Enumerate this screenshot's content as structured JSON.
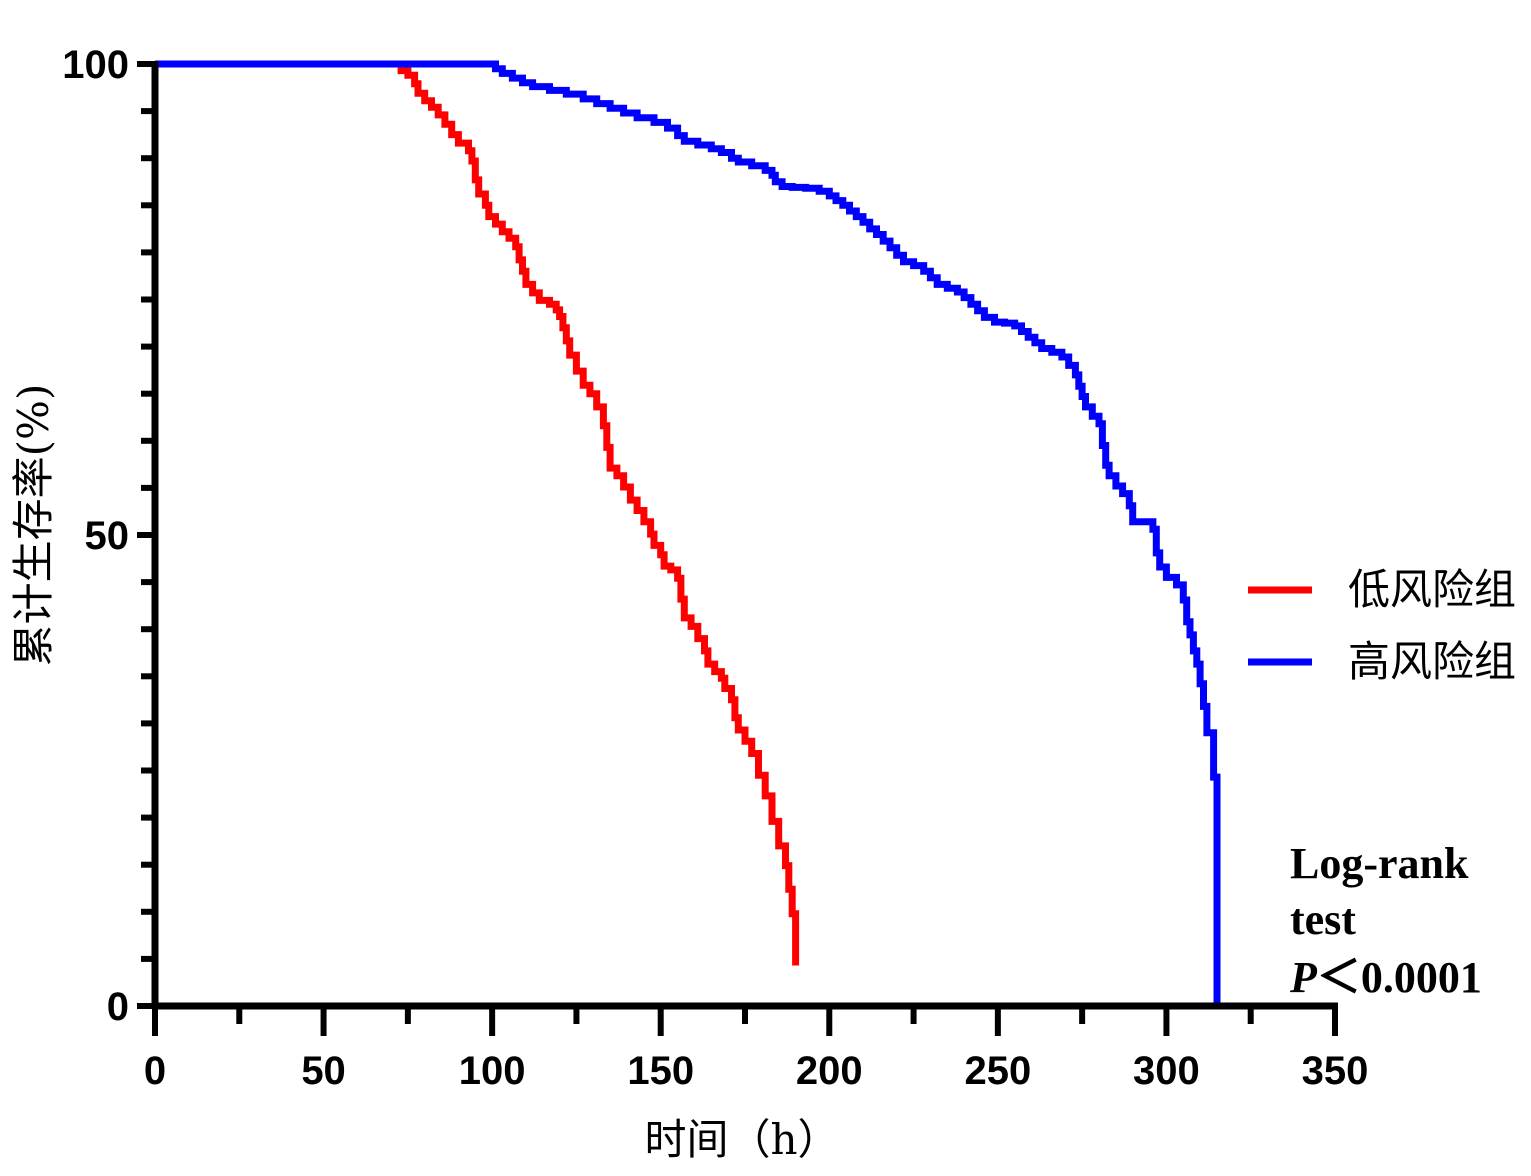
{
  "chart_data": {
    "type": "line",
    "subtype": "kaplan-meier step",
    "title": "",
    "xlabel": "时间（h）",
    "ylabel": "累计生存率(%)",
    "xlim": [
      0,
      350
    ],
    "ylim": [
      0,
      100
    ],
    "x_ticks": [
      0,
      50,
      100,
      150,
      200,
      250,
      300,
      350
    ],
    "y_ticks": [
      0,
      50,
      100
    ],
    "x_minor_step": 25,
    "y_minor_step": 5,
    "grid": false,
    "legend_position": "right",
    "series": [
      {
        "name": "低风险组",
        "color": "#ff0000",
        "points": [
          [
            0,
            100
          ],
          [
            72,
            100
          ],
          [
            73,
            99.3
          ],
          [
            75,
            98.8
          ],
          [
            77,
            97.9
          ],
          [
            78,
            96.9
          ],
          [
            80,
            96.1
          ],
          [
            82,
            95.4
          ],
          [
            84,
            94.6
          ],
          [
            86,
            93.6
          ],
          [
            88,
            92.5
          ],
          [
            90,
            91.6
          ],
          [
            93,
            90.8
          ],
          [
            94,
            89.7
          ],
          [
            95,
            87.7
          ],
          [
            96,
            86.2
          ],
          [
            98,
            85.0
          ],
          [
            99,
            83.8
          ],
          [
            101,
            83.0
          ],
          [
            103,
            82.2
          ],
          [
            105,
            81.5
          ],
          [
            107,
            80.6
          ],
          [
            108,
            79.2
          ],
          [
            109,
            78.0
          ],
          [
            110,
            76.6
          ],
          [
            112,
            75.7
          ],
          [
            114,
            74.9
          ],
          [
            117,
            74.5
          ],
          [
            119,
            73.9
          ],
          [
            120,
            73.2
          ],
          [
            121,
            72.0
          ],
          [
            122,
            70.6
          ],
          [
            123,
            69.1
          ],
          [
            125,
            67.4
          ],
          [
            127,
            65.9
          ],
          [
            129,
            65.0
          ],
          [
            131,
            63.6
          ],
          [
            133,
            61.6
          ],
          [
            134,
            59.3
          ],
          [
            135,
            57.1
          ],
          [
            137,
            56.3
          ],
          [
            139,
            55.1
          ],
          [
            141,
            53.7
          ],
          [
            143,
            52.6
          ],
          [
            145,
            51.4
          ],
          [
            147,
            50.1
          ],
          [
            148,
            48.9
          ],
          [
            150,
            47.9
          ],
          [
            151,
            46.7
          ],
          [
            153,
            46.3
          ],
          [
            155,
            45.4
          ],
          [
            156,
            43.2
          ],
          [
            157,
            41.2
          ],
          [
            159,
            40.3
          ],
          [
            161,
            39.0
          ],
          [
            163,
            37.7
          ],
          [
            164,
            36.3
          ],
          [
            166,
            35.5
          ],
          [
            168,
            34.8
          ],
          [
            169,
            33.7
          ],
          [
            171,
            32.5
          ],
          [
            172,
            30.6
          ],
          [
            173,
            29.3
          ],
          [
            175,
            28.1
          ],
          [
            177,
            26.8
          ],
          [
            179,
            24.5
          ],
          [
            181,
            22.3
          ],
          [
            183,
            19.6
          ],
          [
            185,
            17.0
          ],
          [
            187,
            14.9
          ],
          [
            188,
            12.4
          ],
          [
            189,
            9.8
          ],
          [
            190,
            7.5
          ],
          [
            190,
            4.3
          ]
        ]
      },
      {
        "name": "高风险组",
        "color": "#0000ff",
        "points": [
          [
            0,
            100
          ],
          [
            100,
            100
          ],
          [
            101,
            99.5
          ],
          [
            103,
            99.0
          ],
          [
            106,
            98.5
          ],
          [
            109,
            98.0
          ],
          [
            112,
            97.6
          ],
          [
            117,
            97.2
          ],
          [
            122,
            96.8
          ],
          [
            127,
            96.3
          ],
          [
            131,
            95.8
          ],
          [
            135,
            95.3
          ],
          [
            139,
            94.8
          ],
          [
            143,
            94.3
          ],
          [
            148,
            93.8
          ],
          [
            152,
            93.2
          ],
          [
            155,
            92.4
          ],
          [
            157,
            91.8
          ],
          [
            161,
            91.4
          ],
          [
            165,
            91.0
          ],
          [
            168,
            90.6
          ],
          [
            171,
            90.0
          ],
          [
            173,
            89.6
          ],
          [
            177,
            89.2
          ],
          [
            181,
            88.7
          ],
          [
            183,
            88.2
          ],
          [
            184,
            87.5
          ],
          [
            186,
            87.0
          ],
          [
            189,
            86.9
          ],
          [
            193,
            86.8
          ],
          [
            197,
            86.5
          ],
          [
            200,
            86.0
          ],
          [
            202,
            85.5
          ],
          [
            204,
            85.0
          ],
          [
            206,
            84.4
          ],
          [
            208,
            83.8
          ],
          [
            210,
            83.2
          ],
          [
            212,
            82.5
          ],
          [
            214,
            81.9
          ],
          [
            216,
            81.2
          ],
          [
            218,
            80.5
          ],
          [
            220,
            79.7
          ],
          [
            222,
            79.0
          ],
          [
            225,
            78.6
          ],
          [
            228,
            78.0
          ],
          [
            230,
            77.3
          ],
          [
            232,
            76.6
          ],
          [
            235,
            76.2
          ],
          [
            238,
            75.8
          ],
          [
            240,
            75.2
          ],
          [
            242,
            74.5
          ],
          [
            244,
            73.8
          ],
          [
            246,
            73.1
          ],
          [
            249,
            72.6
          ],
          [
            252,
            72.5
          ],
          [
            255,
            72.2
          ],
          [
            257,
            71.6
          ],
          [
            259,
            71.0
          ],
          [
            261,
            70.4
          ],
          [
            263,
            69.8
          ],
          [
            266,
            69.4
          ],
          [
            269,
            68.9
          ],
          [
            271,
            68.0
          ],
          [
            273,
            67.0
          ],
          [
            274,
            65.8
          ],
          [
            275,
            64.7
          ],
          [
            276,
            63.6
          ],
          [
            278,
            62.6
          ],
          [
            280,
            61.8
          ],
          [
            281,
            59.5
          ],
          [
            282,
            57.4
          ],
          [
            283,
            56.3
          ],
          [
            285,
            55.2
          ],
          [
            287,
            54.4
          ],
          [
            289,
            53.1
          ],
          [
            290,
            51.4
          ],
          [
            293,
            51.4
          ],
          [
            296,
            50.6
          ],
          [
            297,
            48.1
          ],
          [
            298,
            46.6
          ],
          [
            300,
            45.5
          ],
          [
            303,
            44.7
          ],
          [
            305,
            43.1
          ],
          [
            306,
            40.8
          ],
          [
            307,
            39.4
          ],
          [
            308,
            37.7
          ],
          [
            309,
            36.3
          ],
          [
            310,
            34.2
          ],
          [
            311,
            31.8
          ],
          [
            312,
            29.0
          ],
          [
            314,
            24.3
          ],
          [
            315,
            0
          ]
        ]
      }
    ],
    "annotation": {
      "line1": "Log-rank",
      "line2": "test",
      "p_symbol": "P",
      "p_value": "＜0.0001"
    }
  }
}
